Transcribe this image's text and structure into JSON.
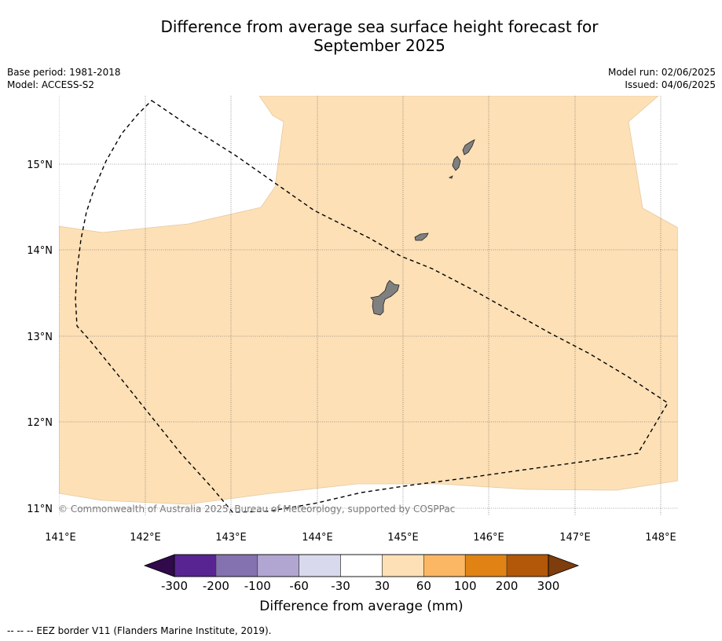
{
  "title_line1": "Difference from average sea surface height forecast for",
  "title_line2": "September 2025",
  "meta": {
    "base_period": "Base period: 1981-2018",
    "model": "Model: ACCESS-S2",
    "model_run": "Model run: 02/06/2025",
    "issued": "Issued: 04/06/2025"
  },
  "copyright": "© Commonwealth of Australia 2025, Bureau of Meteorology, supported by COSPPac",
  "footnote": "--  --  -- EEZ border V11 (Flanders Marine Institute, 2019).",
  "map": {
    "lon_ticks": [
      "141°E",
      "142°E",
      "143°E",
      "144°E",
      "145°E",
      "146°E",
      "147°E",
      "148°E"
    ],
    "lat_ticks": [
      "15°N",
      "14°N",
      "13°N",
      "12°N",
      "11°N"
    ],
    "colors": {
      "land": "#808080",
      "anomaly_30_60": "#fde0b6",
      "ocean_neutral": "#ffffff"
    }
  },
  "colorbar": {
    "title": "Difference from average (mm)",
    "labels": [
      "-300",
      "-200",
      "-100",
      "-60",
      "-30",
      "30",
      "60",
      "100",
      "200",
      "300"
    ],
    "colors": [
      "#582491",
      "#8471b0",
      "#b1a6d1",
      "#d8d9ed",
      "#ffffff",
      "#fde0b6",
      "#fbb763",
      "#e08314",
      "#b35709"
    ],
    "low_extend_color": "#300a4a",
    "high_extend_color": "#7e3d0c"
  }
}
